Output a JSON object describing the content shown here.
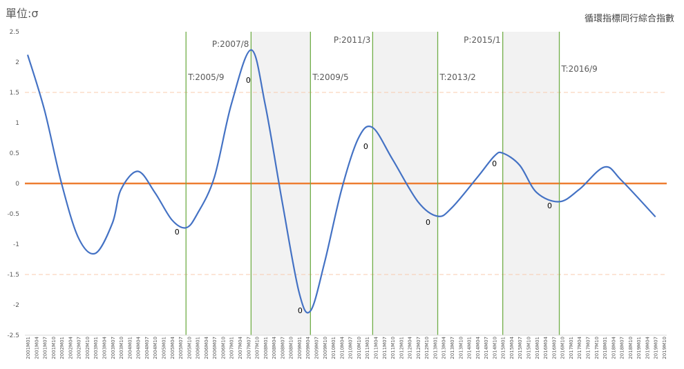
{
  "chart_data": {
    "type": "line",
    "unit_label": "單位:σ",
    "title": "循環指標同行綜合指數",
    "ylim": [
      -2.5,
      2.5
    ],
    "yticks": [
      2.5,
      2,
      1.5,
      1,
      0.5,
      0,
      -0.5,
      -1,
      -1.5,
      -2,
      -2.5
    ],
    "ytick_labels": [
      "2.5",
      "2",
      "1.5",
      "1",
      "0.5",
      "0",
      "-0.5",
      "-1",
      "-1.5",
      "-2",
      "-2.5"
    ],
    "reference_lines": [
      {
        "y": 1.5,
        "style": "dashed",
        "color": "#f8cbad"
      },
      {
        "y": -1.5,
        "style": "dashed",
        "color": "#f8cbad"
      },
      {
        "y": 0,
        "style": "solid",
        "color": "#ed7d31"
      }
    ],
    "xlim": [
      "2001M01",
      "2019M10"
    ],
    "x_tick_labels": [
      "2001M01",
      "2001M04",
      "2001M07",
      "2001M10",
      "2002M01",
      "2002M04",
      "2002M07",
      "2002M10",
      "2003M01",
      "2003M04",
      "2003M07",
      "2003M10",
      "2004M01",
      "2004M04",
      "2004M07",
      "2004M10",
      "2005M01",
      "2005M04",
      "2005M07",
      "2005M10",
      "2006M01",
      "2006M04",
      "2006M07",
      "2006M10",
      "2007M01",
      "2007M04",
      "2007M07",
      "2007M10",
      "2008M01",
      "2008M04",
      "2008M07",
      "2008M10",
      "2009M01",
      "2009M04",
      "2009M07",
      "2009M10",
      "2010M01",
      "2010M04",
      "2010M07",
      "2010M10",
      "2011M01",
      "2011M04",
      "2011M07",
      "2011M10",
      "2012M01",
      "2012M04",
      "2012M07",
      "2012M10",
      "2013M01",
      "2013M04",
      "2013M07",
      "2013M10",
      "2014M01",
      "2014M04",
      "2014M07",
      "2014M10",
      "2015M01",
      "2015M04",
      "2015M07",
      "2015M10",
      "2016M01",
      "2016M04",
      "2016M07",
      "2016M10",
      "2017M01",
      "2017M04",
      "2017M07",
      "2017M10",
      "2018M01",
      "2018M04",
      "2018M07",
      "2018M10",
      "2019M01",
      "2019M04",
      "2019M07",
      "2019M10"
    ],
    "series": [
      {
        "color": "#4472c4",
        "points": [
          [
            "2001M01",
            2.12
          ],
          [
            "2001M07",
            1.2
          ],
          [
            "2002M01",
            0.0
          ],
          [
            "2002M07",
            -0.9
          ],
          [
            "2003M01",
            -1.15
          ],
          [
            "2003M07",
            -0.65
          ],
          [
            "2003M10",
            -0.1
          ],
          [
            "2004M04",
            0.2
          ],
          [
            "2004M10",
            -0.15
          ],
          [
            "2005M04",
            -0.6
          ],
          [
            "2005M09",
            -0.73
          ],
          [
            "2006M01",
            -0.5
          ],
          [
            "2006M07",
            0.1
          ],
          [
            "2007M01",
            1.3
          ],
          [
            "2007M08",
            2.2
          ],
          [
            "2008M01",
            1.3
          ],
          [
            "2008M07",
            -0.3
          ],
          [
            "2009M01",
            -1.8
          ],
          [
            "2009M05",
            -2.1
          ],
          [
            "2009M10",
            -1.3
          ],
          [
            "2010M04",
            -0.1
          ],
          [
            "2010M10",
            0.75
          ],
          [
            "2011M03",
            0.92
          ],
          [
            "2011M10",
            0.4
          ],
          [
            "2012M07",
            -0.3
          ],
          [
            "2013M02",
            -0.54
          ],
          [
            "2013M07",
            -0.4
          ],
          [
            "2014M04",
            0.1
          ],
          [
            "2014M10",
            0.45
          ],
          [
            "2015M01",
            0.5
          ],
          [
            "2015M07",
            0.3
          ],
          [
            "2016M01",
            -0.15
          ],
          [
            "2016M09",
            -0.3
          ],
          [
            "2017M04",
            -0.1
          ],
          [
            "2018M01",
            0.27
          ],
          [
            "2018M07",
            0.05
          ],
          [
            "2019M07",
            -0.55
          ]
        ]
      }
    ],
    "turning_points": [
      {
        "date": "2005M09",
        "label": "T:2005/9",
        "value_label": "0"
      },
      {
        "date": "2007M08",
        "label": "P:2007/8",
        "value_label": "0"
      },
      {
        "date": "2009M05",
        "label": "T:2009/5",
        "value_label": "0"
      },
      {
        "date": "2011M03",
        "label": "P:2011/3",
        "value_label": "0"
      },
      {
        "date": "2013M02",
        "label": "T:2013/2",
        "value_label": "0"
      },
      {
        "date": "2015M01",
        "label": "P:2015/1",
        "value_label": "0"
      },
      {
        "date": "2016M09",
        "label": "T:2016/9",
        "value_label": "0"
      }
    ],
    "recession_bands": [
      {
        "from": "2007M08",
        "to": "2009M05",
        "color": "#f2f2f2"
      },
      {
        "from": "2011M03",
        "to": "2013M02",
        "color": "#f2f2f2"
      },
      {
        "from": "2015M01",
        "to": "2016M09",
        "color": "#f2f2f2"
      }
    ],
    "colors": {
      "line": "#4472c4",
      "turning_line": "#70ad47",
      "zero_line": "#ed7d31",
      "band": "#f2f2f2",
      "ref_dash": "#f8cbad"
    }
  }
}
